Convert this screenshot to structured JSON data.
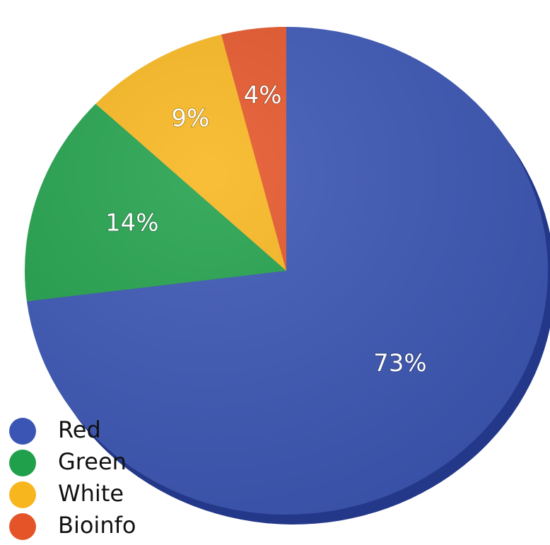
{
  "chart_data": {
    "type": "pie",
    "title": "",
    "legend_position": "bottom-left",
    "slices": [
      {
        "name": "Red",
        "value": 73,
        "label": "73%",
        "color": "#3a55b4",
        "edge_color": "#24388a"
      },
      {
        "name": "Green",
        "value": 14,
        "label": "14%",
        "color": "#20a04a",
        "edge_color": "#157032"
      },
      {
        "name": "White",
        "value": 9,
        "label": "9%",
        "color": "#f8b61e",
        "edge_color": "#c98c10"
      },
      {
        "name": "Bioinfo",
        "value": 4,
        "label": "4%",
        "color": "#e45428",
        "edge_color": "#9c2a14"
      }
    ]
  }
}
